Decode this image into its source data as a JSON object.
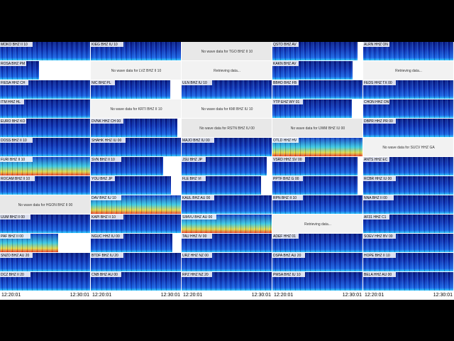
{
  "columns": [
    {
      "panels": [
        {
          "label": "MOKO BHZ II 10"
        },
        {
          "label": "ROSA BHZ PM"
        },
        {
          "label": "FIESA HHZ CH"
        },
        {
          "label": "ITM HHZ HL"
        },
        {
          "label": "EURO BHZ KO"
        },
        {
          "label": "DOSS BHZ II 10"
        },
        {
          "label": "FURI BHZ II 10"
        },
        {
          "label": "ROCAM BHZ II 10"
        },
        {
          "message": "No wave data for HGON BHZ II 00"
        },
        {
          "label": "UUM BHZ II 00"
        },
        {
          "label": "PAF BHZ II 00"
        },
        {
          "label": "SNZO BHZ AU 20"
        },
        {
          "label": "DCZ BHZ II 20"
        }
      ],
      "time_start": "12:20:01",
      "time_end": "12:30:01"
    },
    {
      "panels": [
        {
          "label": "KIEG BHZ IU 10"
        },
        {
          "message": "No wave data for LVZ BHZ II 10"
        },
        {
          "label": "NIC BHZ PL"
        },
        {
          "message": "No wave data for KRTI BHZ II 10"
        },
        {
          "label": "DVNK HHZ CH 00"
        },
        {
          "label": "SHAHK HHZ IU 00"
        },
        {
          "label": "SVN BHZ II 10"
        },
        {
          "label": "YOU BHZ JP"
        },
        {
          "label": "DAV BHZ IU 10"
        },
        {
          "label": "KAPI BHZ II 10"
        },
        {
          "label": "NGUC HHZ IU 00"
        },
        {
          "label": "BTDF BHZ IU 20"
        },
        {
          "label": "CNB BHZ AU 00"
        }
      ],
      "time_start": "12:20:01",
      "time_end": "12:30:01"
    },
    {
      "panels": [
        {
          "message": "No wave data for TGO BHZ II 10"
        },
        {
          "message": "Retrieving data..."
        },
        {
          "label": "ULN BHZ IU 10"
        },
        {
          "message": "No wave data for KMI BHZ IU 10"
        },
        {
          "message": "No wave data for RSTN BHZ IU 00"
        },
        {
          "label": "MAJO BHZ IU 00"
        },
        {
          "label": "JSU BHZ JP"
        },
        {
          "label": "FLE BHZ VI"
        },
        {
          "label": "KAUL BHZ AU 00"
        },
        {
          "label": "SIMVU BHZ AU 00"
        },
        {
          "label": "TAU HHZ IV 00"
        },
        {
          "label": "URZ HHZ NZ 00"
        },
        {
          "label": "RPZ HHZ NZ 20"
        }
      ],
      "time_start": "12:20:01",
      "time_end": "12:30:01"
    },
    {
      "panels": [
        {
          "label": "QSTD BHZ AV"
        },
        {
          "label": "KAKN BHZ AV"
        },
        {
          "label": "BBHD BHZ FB"
        },
        {
          "label": "YTP EHZ WY 01"
        },
        {
          "message": "No wave data for UWM BHZ IU 00"
        },
        {
          "label": "OTLD HHZ HV"
        },
        {
          "label": "VSRD HHZ SV 00"
        },
        {
          "label": "PPTF BHZ G 00"
        },
        {
          "label": "RPN BHZ II 10"
        },
        {
          "message": "Retrieving data..."
        },
        {
          "label": "ADEF HHZ 01"
        },
        {
          "label": "DSPA BHZ AU 20"
        },
        {
          "label": "PMSA BHZ IU 10"
        }
      ],
      "time_start": "12:20:01",
      "time_end": "12:30:01"
    },
    {
      "panels": [
        {
          "label": "ALRN HHZ ON"
        },
        {
          "message": "Retrieving data..."
        },
        {
          "label": "FEDS HHZ TX 00"
        },
        {
          "label": "CHON HHZ ON"
        },
        {
          "label": "DBPR HHZ PR 00"
        },
        {
          "message": "No wave data for SUCV HHZ GA"
        },
        {
          "label": "ANTS HHZ EC"
        },
        {
          "label": "RCBR HHZ IU 00"
        },
        {
          "label": "NNA BHZ II 00"
        },
        {
          "label": "AF31 HHZ C1"
        },
        {
          "label": "SOEV HHZ BV 00"
        },
        {
          "label": "HOPE BHZ II 10"
        },
        {
          "label": "BELA HHZ AU 00"
        }
      ],
      "time_start": "12:20:01",
      "time_end": "12:30:01"
    }
  ]
}
